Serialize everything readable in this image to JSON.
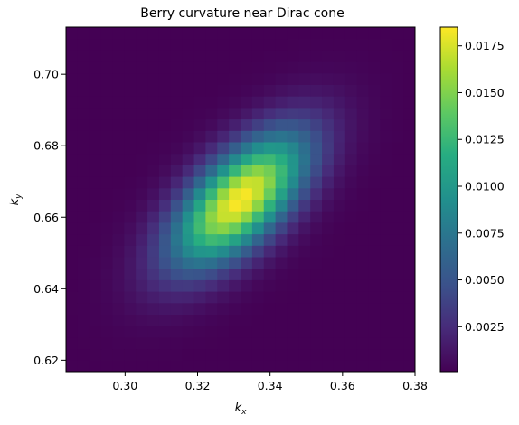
{
  "chart_data": {
    "type": "heatmap",
    "title": "Berry curvature near Dirac cone",
    "xlabel": "k",
    "xlabel_sub": "x",
    "ylabel": "k",
    "ylabel_sub": "y",
    "xlim": [
      0.2837,
      0.38
    ],
    "ylim": [
      0.6168,
      0.7132
    ],
    "grid": false,
    "colormap": "viridis",
    "colorbar_range": [
      0.0001,
      0.0185
    ],
    "x_ticks": [
      0.3,
      0.32,
      0.34,
      0.36,
      0.38
    ],
    "x_tick_labels": [
      "0.30",
      "0.32",
      "0.34",
      "0.36",
      "0.38"
    ],
    "y_ticks": [
      0.62,
      0.64,
      0.66,
      0.68,
      0.7
    ],
    "y_tick_labels": [
      "0.62",
      "0.64",
      "0.66",
      "0.68",
      "0.70"
    ],
    "colorbar_ticks": [
      0.0025,
      0.005,
      0.0075,
      0.01,
      0.0125,
      0.015,
      0.0175
    ],
    "colorbar_tick_labels": [
      "0.0025",
      "0.0050",
      "0.0075",
      "0.0100",
      "0.0125",
      "0.0150",
      "0.0175"
    ],
    "grid_cells": [
      30,
      30
    ],
    "peak": {
      "kx": 0.3317,
      "ky": 0.665,
      "value": 0.0185
    },
    "spread": {
      "along_diagonal": 0.0165,
      "across_diagonal": 0.0078,
      "angle_deg": 45
    }
  }
}
